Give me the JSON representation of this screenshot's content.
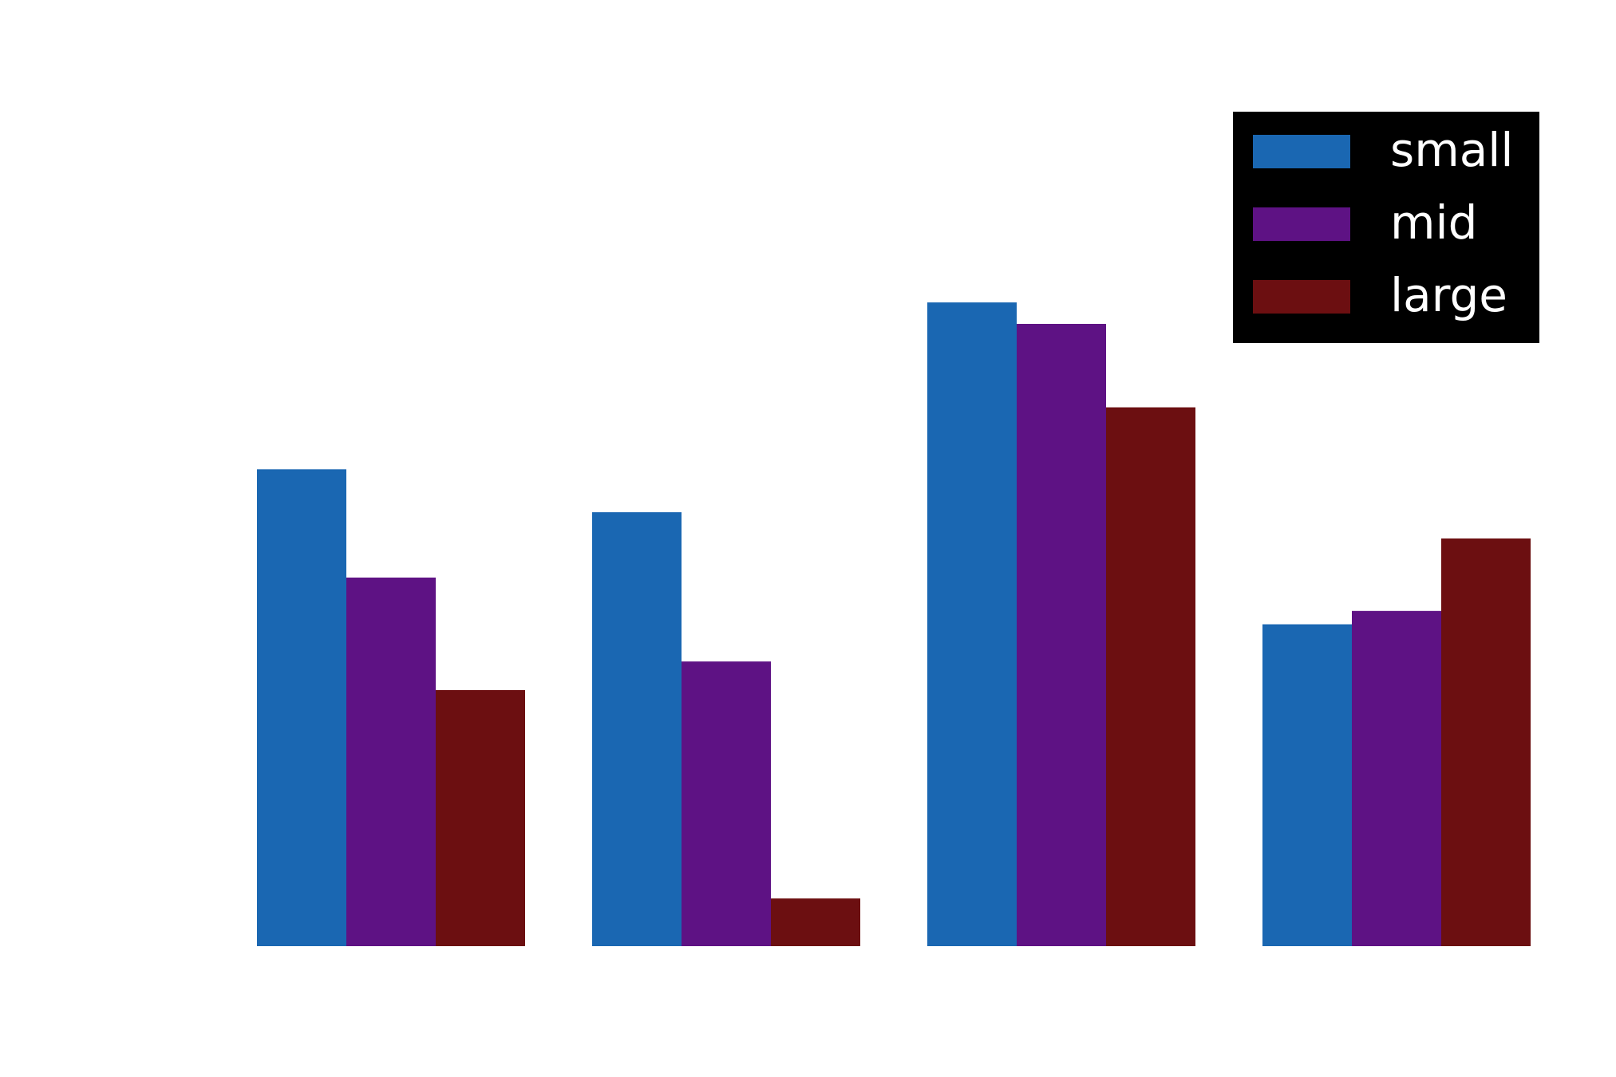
{
  "chart_data": {
    "type": "bar",
    "categories": [
      "",
      "",
      "",
      ""
    ],
    "series": [
      {
        "name": "small",
        "color": "#1a67b2",
        "values": [
          10.0,
          9.1,
          13.5,
          6.75
        ]
      },
      {
        "name": "mid",
        "color": "#5e1284",
        "values": [
          7.73,
          5.97,
          13.05,
          7.03
        ]
      },
      {
        "name": "large",
        "color": "#6c0f11",
        "values": [
          5.37,
          1.0,
          11.3,
          8.55
        ]
      }
    ],
    "ylim": [
      0,
      17.5
    ],
    "grid": false,
    "legend": {
      "position": "top-right",
      "background": "#000000",
      "text_color": "#ffffff"
    },
    "title": "",
    "xlabel": "",
    "ylabel": ""
  }
}
